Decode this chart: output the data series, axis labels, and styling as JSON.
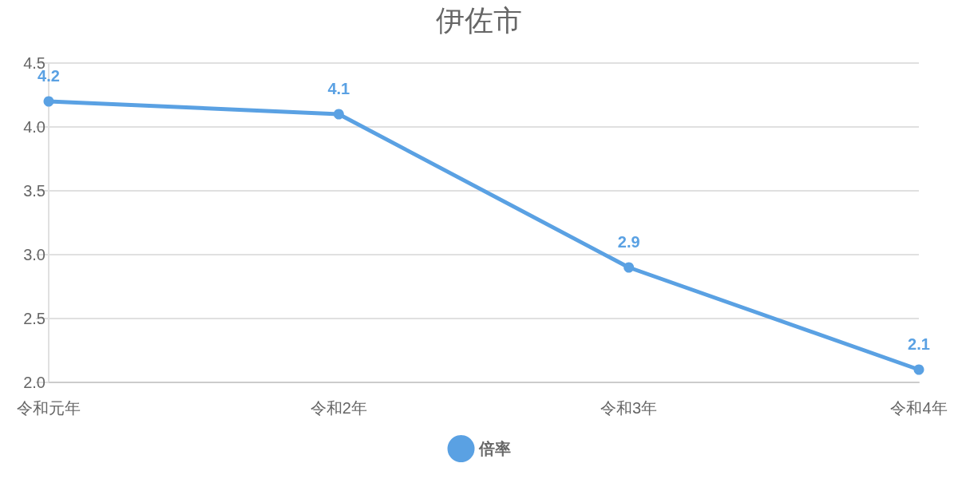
{
  "chart_data": {
    "type": "line",
    "title": "伊佐市",
    "categories": [
      "令和元年",
      "令和2年",
      "令和3年",
      "令和4年"
    ],
    "series": [
      {
        "name": "倍率",
        "color": "#5aa1e3",
        "values": [
          4.2,
          4.1,
          2.9,
          2.1
        ]
      }
    ],
    "ylim": [
      2.0,
      4.5
    ],
    "yticks": [
      {
        "value": 2,
        "label": "2.0"
      },
      2.5,
      {
        "value": 3,
        "label": "3.0"
      },
      3.5,
      {
        "value": 4,
        "label": "4.0"
      },
      4.5
    ],
    "grid": "y",
    "legend": "bottom",
    "marker": "circle",
    "line_style": "solid",
    "data_labels": true
  }
}
